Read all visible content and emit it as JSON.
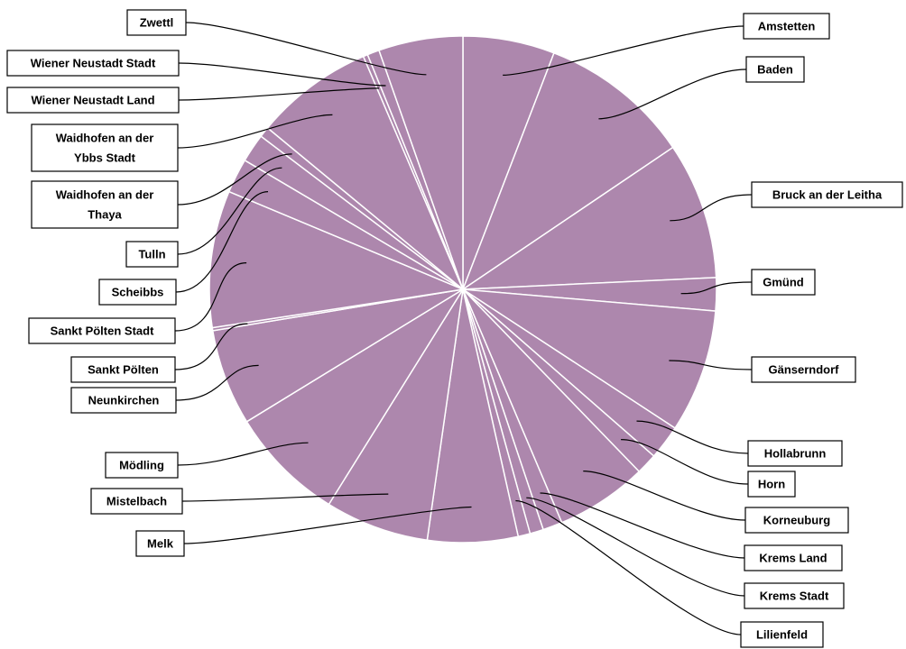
{
  "chart_data": {
    "type": "pie",
    "title": "",
    "slice_color": "#ad87ad",
    "border_color": "#ffffff",
    "legend": "none",
    "categories": [
      "Amstetten",
      "Baden",
      "Bruck an der Leitha",
      "Gmünd",
      "Gänserndorf",
      "Hollabrunn",
      "Horn",
      "Korneuburg",
      "Krems Land",
      "Krems Stadt",
      "Lilienfeld",
      "Melk",
      "Mistelbach",
      "Mödling",
      "Neunkirchen",
      "Sankt Pölten",
      "Sankt Pölten Stadt",
      "Scheibbs",
      "Tulln",
      "Waidhofen an der Thaya",
      "Waidhofen an der Ybbs Stadt",
      "Wiener Neustadt Land",
      "Wiener Neustadt Stadt",
      "Zwettl"
    ],
    "display_labels": [
      [
        "Amstetten"
      ],
      [
        "Baden"
      ],
      [
        "Bruck an der Leitha"
      ],
      [
        "Gmünd"
      ],
      [
        "Gänserndorf"
      ],
      [
        "Hollabrunn"
      ],
      [
        "Horn"
      ],
      [
        "Korneuburg"
      ],
      [
        "Krems Land"
      ],
      [
        "Krems Stadt"
      ],
      [
        "Lilienfeld"
      ],
      [
        "Melk"
      ],
      [
        "Mistelbach"
      ],
      [
        "Mödling"
      ],
      [
        "Neunkirchen"
      ],
      [
        "Sankt Pölten"
      ],
      [
        "Sankt Pölten Stadt"
      ],
      [
        "Scheibbs"
      ],
      [
        "Tulln"
      ],
      [
        "Waidhofen an der",
        "Thaya"
      ],
      [
        "Waidhofen an der",
        "Ybbs Stadt"
      ],
      [
        "Wiener Neustadt Land"
      ],
      [
        "Wiener Neustadt Stadt"
      ],
      [
        "Zwettl"
      ]
    ],
    "values": [
      6.1,
      10.1,
      9.1,
      2.2,
      8.2,
      2.3,
      1.4,
      6.1,
      1.3,
      0.9,
      0.8,
      6.0,
      6.9,
      7.7,
      6.4,
      0.2,
      9.1,
      2.3,
      1.9,
      0.7,
      7.9,
      0.3,
      0.8,
      5.6
    ]
  }
}
